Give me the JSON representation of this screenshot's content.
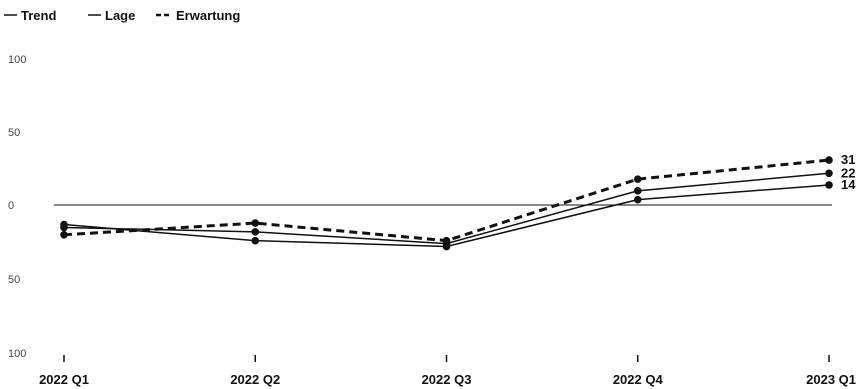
{
  "chart_data": {
    "type": "line",
    "categories": [
      "2022 Q1",
      "2022 Q2",
      "2022 Q3",
      "2022 Q4",
      "2023 Q1"
    ],
    "series": [
      {
        "name": "Trend",
        "values": [
          -15,
          -18,
          -26,
          10,
          22
        ],
        "end_label": "22",
        "color": "#111111",
        "style": "solid"
      },
      {
        "name": "Lage",
        "values": [
          -13,
          -24,
          -28,
          4,
          14
        ],
        "end_label": "14",
        "color": "#111111",
        "style": "solid"
      },
      {
        "name": "Erwartung",
        "values": [
          -20,
          -12,
          -24,
          18,
          31
        ],
        "end_label": "31",
        "color": "#111111",
        "style": "dashed"
      }
    ],
    "y_ticks": [
      "100",
      "50",
      "0",
      "50",
      "100"
    ],
    "ylim": [
      -100,
      100
    ],
    "zero_line": true,
    "legend_position": "top-left",
    "title": "",
    "xlabel": "",
    "ylabel": ""
  }
}
